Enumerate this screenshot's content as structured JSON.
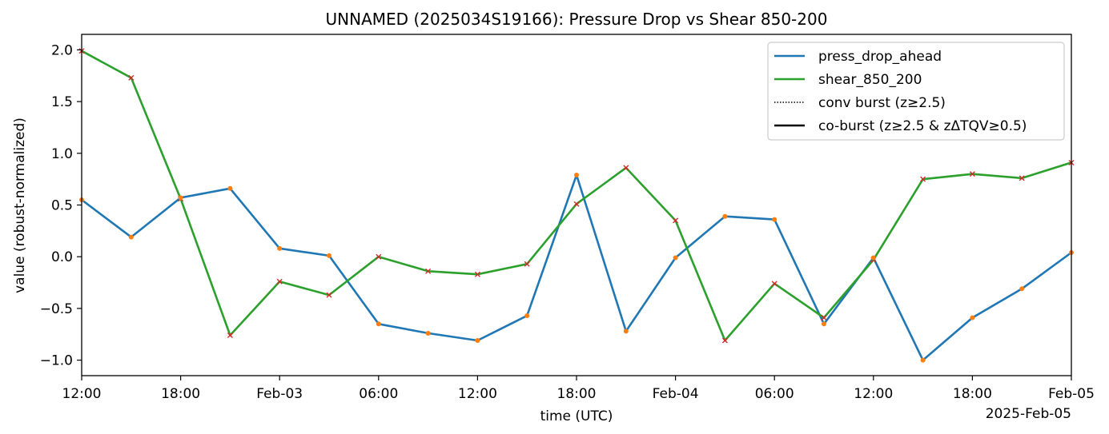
{
  "chart_data": {
    "type": "line",
    "title": "UNNAMED (2025034S19166): Pressure Drop vs Shear 850-200",
    "xlabel": "time (UTC)",
    "ylabel": "value (robust-normalized)",
    "x_offset_label": "2025-Feb-05",
    "x": [
      "2025-02-02 12:00",
      "2025-02-02 15:00",
      "2025-02-02 18:00",
      "2025-02-02 21:00",
      "2025-02-03 00:00",
      "2025-02-03 03:00",
      "2025-02-03 06:00",
      "2025-02-03 09:00",
      "2025-02-03 12:00",
      "2025-02-03 15:00",
      "2025-02-03 18:00",
      "2025-02-03 21:00",
      "2025-02-04 00:00",
      "2025-02-04 03:00",
      "2025-02-04 06:00",
      "2025-02-04 09:00",
      "2025-02-04 12:00",
      "2025-02-04 15:00",
      "2025-02-04 18:00",
      "2025-02-04 21:00",
      "2025-02-05 00:00"
    ],
    "xlim": [
      "2025-02-02 12:00",
      "2025-02-05 00:00"
    ],
    "ylim": [
      -1.15,
      2.15
    ],
    "x_ticks": [
      "12:00",
      "18:00",
      "Feb-03",
      "06:00",
      "12:00",
      "18:00",
      "Feb-04",
      "06:00",
      "12:00",
      "18:00",
      "Feb-05"
    ],
    "y_ticks": [
      "2.0",
      "1.5",
      "1.0",
      "0.5",
      "0.0",
      "−0.5",
      "−1.0"
    ],
    "y_tick_values": [
      2.0,
      1.5,
      1.0,
      0.5,
      0.0,
      -0.5,
      -1.0
    ],
    "series": [
      {
        "name": "press_drop_ahead",
        "color": "#1f77b4",
        "values": [
          0.55,
          0.19,
          0.57,
          0.66,
          0.08,
          0.01,
          -0.65,
          -0.74,
          -0.81,
          -0.57,
          0.79,
          -0.72,
          -0.01,
          0.39,
          0.36,
          -0.65,
          -0.01,
          -1.0,
          -0.59,
          -0.31,
          0.04
        ]
      },
      {
        "name": "shear_850_200",
        "color": "#2ca02c",
        "values": [
          1.99,
          1.73,
          0.56,
          -0.76,
          -0.24,
          -0.37,
          0.0,
          -0.14,
          -0.17,
          -0.07,
          0.51,
          0.86,
          0.35,
          -0.81,
          -0.26,
          -0.59,
          -0.03,
          0.75,
          0.8,
          0.76,
          0.91
        ]
      }
    ],
    "marker_colors": {
      "press_drop_ahead": "#ff7f0e",
      "shear_850_200": "#d62728"
    },
    "legend": {
      "placement": "top-right",
      "entries": [
        {
          "label": "press_drop_ahead",
          "style": "line",
          "color": "#1f77b4"
        },
        {
          "label": "shear_850_200",
          "style": "line",
          "color": "#2ca02c"
        },
        {
          "label": "conv burst (z≥2.5)",
          "style": "dotted",
          "color": "#000000"
        },
        {
          "label": "co-burst (z≥2.5 & zΔTQV≥0.5)",
          "style": "solid",
          "color": "#000000"
        }
      ]
    },
    "grid": false
  }
}
